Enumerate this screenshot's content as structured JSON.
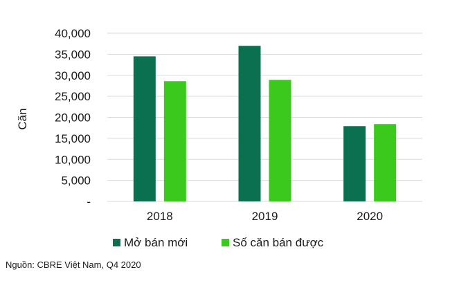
{
  "chart_data": {
    "type": "bar",
    "categories": [
      "2018",
      "2019",
      "2020"
    ],
    "series": [
      {
        "name": "Mở bán mới",
        "values": [
          34500,
          37000,
          17900
        ],
        "color": "#0b7050"
      },
      {
        "name": "Số căn bán được",
        "values": [
          28600,
          28900,
          18400
        ],
        "color": "#3cc91e"
      }
    ],
    "ylabel": "Căn",
    "ylim": [
      0,
      40000
    ],
    "yticks": [
      {
        "value": 0,
        "label": "-"
      },
      {
        "value": 5000,
        "label": "5,000"
      },
      {
        "value": 10000,
        "label": "10,000"
      },
      {
        "value": 15000,
        "label": "15,000"
      },
      {
        "value": 20000,
        "label": "20,000"
      },
      {
        "value": 25000,
        "label": "25,000"
      },
      {
        "value": 30000,
        "label": "30,000"
      },
      {
        "value": 35000,
        "label": "35,000"
      },
      {
        "value": 40000,
        "label": "40,000"
      }
    ],
    "grid": true,
    "legend_position": "bottom"
  },
  "source": "Nguồn: CBRE Việt Nam, Q4 2020"
}
